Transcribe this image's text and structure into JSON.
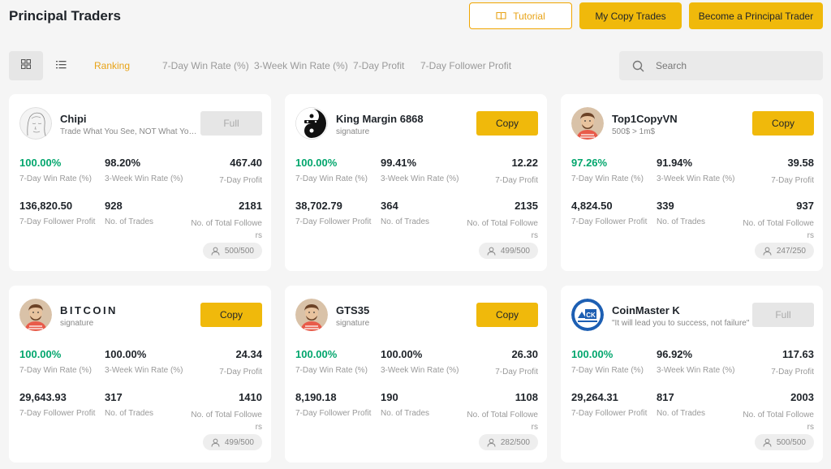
{
  "header": {
    "title": "Principal Traders",
    "tutorial_label": "Tutorial",
    "my_copy_trades_label": "My Copy Trades",
    "become_label": "Become a Principal Trader"
  },
  "toolbar": {
    "tabs": [
      "Ranking",
      "7-Day Win Rate (%)",
      "3-Week Win Rate (%)",
      "7-Day Profit",
      "7-Day Follower Profit"
    ],
    "active_tab": "Ranking",
    "search_placeholder": "Search"
  },
  "labels": {
    "win7": "7-Day Win Rate (%)",
    "win3w": "3-Week Win Rate (%)",
    "profit7": "7-Day Profit",
    "follower_profit": "7-Day Follower Profit",
    "trades": "No. of Trades",
    "total_followers": "No. of Total Followers"
  },
  "colors": {
    "accent": "#f0b90b",
    "positive": "#03a66d"
  },
  "traders": [
    {
      "name": "Chipi",
      "signature": "Trade What You See, NOT What You Think",
      "button": "Full",
      "full": true,
      "win7": "100.00%",
      "win3w": "98.20%",
      "profit7": "467.40",
      "follower_profit": "136,820.50",
      "trades": "928",
      "total_followers": "2181",
      "capacity": "500/500",
      "avatar": "sketch-avatar"
    },
    {
      "name": "King Margin 6868",
      "signature": "signature",
      "button": "Copy",
      "full": false,
      "win7": "100.00%",
      "win3w": "99.41%",
      "profit7": "12.22",
      "follower_profit": "38,702.79",
      "trades": "364",
      "total_followers": "2135",
      "capacity": "499/500",
      "avatar": "yin-yang-avatar"
    },
    {
      "name": "Top1CopyVN",
      "signature": "500$ > 1m$",
      "button": "Copy",
      "full": false,
      "win7": "97.26%",
      "win3w": "91.94%",
      "profit7": "39.58",
      "follower_profit": "4,824.50",
      "trades": "339",
      "total_followers": "937",
      "capacity": "247/250",
      "avatar": "default-avatar"
    },
    {
      "name": "BITCOIN",
      "signature": "signature",
      "button": "Copy",
      "full": false,
      "win7": "100.00%",
      "win3w": "100.00%",
      "profit7": "24.34",
      "follower_profit": "29,643.93",
      "trades": "317",
      "total_followers": "1410",
      "capacity": "499/500",
      "avatar": "default-avatar"
    },
    {
      "name": "GTS35",
      "signature": "signature",
      "button": "Copy",
      "full": false,
      "win7": "100.00%",
      "win3w": "100.00%",
      "profit7": "26.30",
      "follower_profit": "8,190.18",
      "trades": "190",
      "total_followers": "1108",
      "capacity": "282/500",
      "avatar": "default-avatar"
    },
    {
      "name": "CoinMaster K",
      "signature": "\"It will lead you to success, not failure\"",
      "button": "Full",
      "full": true,
      "win7": "100.00%",
      "win3w": "96.92%",
      "profit7": "117.63",
      "follower_profit": "29,264.31",
      "trades": "817",
      "total_followers": "2003",
      "capacity": "500/500",
      "avatar": "ck-logo-avatar"
    }
  ]
}
